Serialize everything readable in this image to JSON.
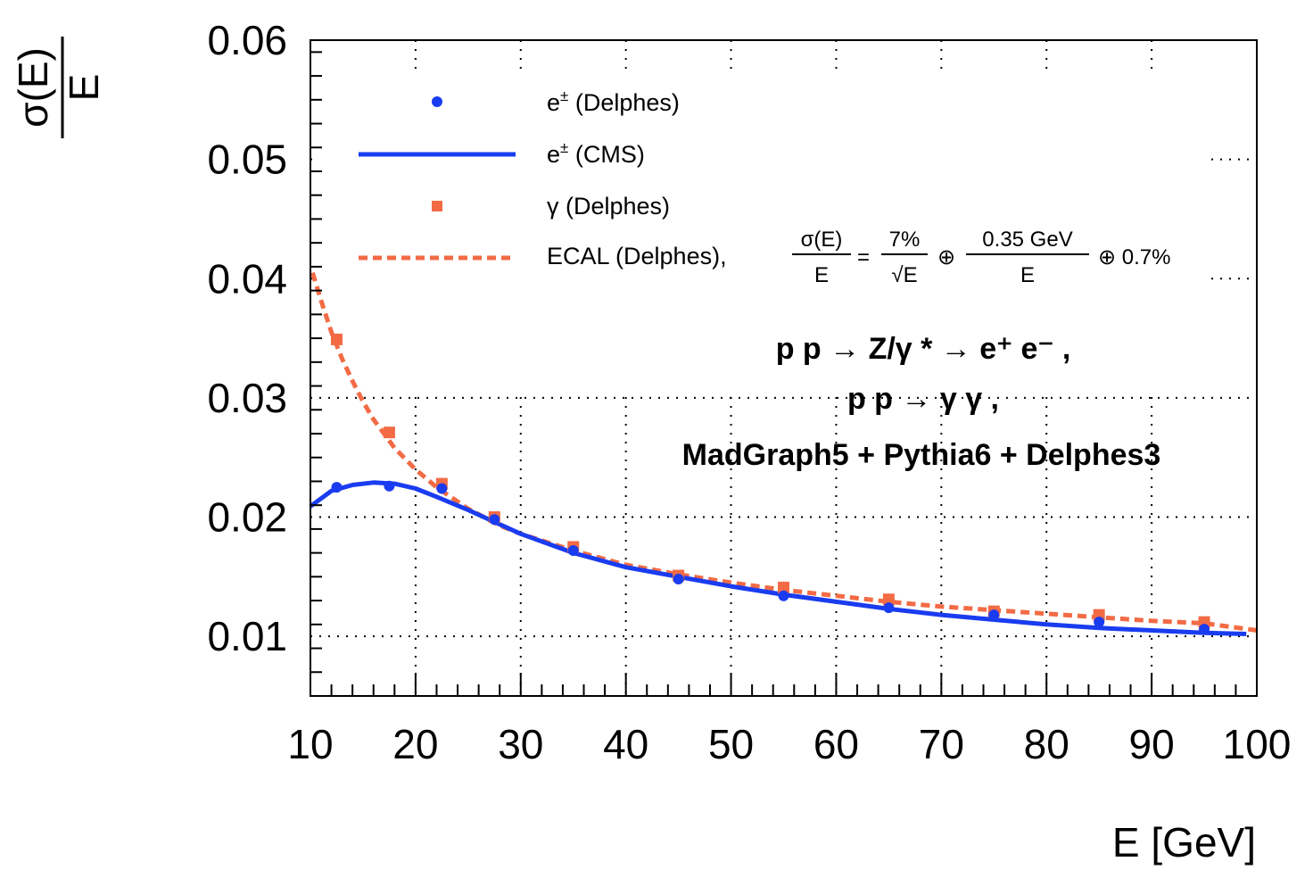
{
  "chart_data": {
    "type": "scatter",
    "xlabel": "E [GeV]",
    "ylabel": {
      "numerator": "σ(E)",
      "denominator": "E"
    },
    "xlim": [
      10,
      100
    ],
    "ylim": [
      0.005,
      0.06
    ],
    "x_ticks": [
      "10",
      "20",
      "30",
      "40",
      "50",
      "60",
      "70",
      "80",
      "90",
      "100"
    ],
    "y_ticks": [
      "0.01",
      "0.02",
      "0.03",
      "0.04",
      "0.05",
      "0.06"
    ],
    "grid": true,
    "legend_position": "top-left",
    "series": [
      {
        "name": "e± (Delphes)",
        "label_main": "e",
        "label_sup": "±",
        "label_rest": " (Delphes)",
        "kind": "points",
        "marker": "circle",
        "color": "#1a3cf0",
        "x": [
          12.5,
          17.5,
          22.5,
          27.5,
          35,
          45,
          55,
          65,
          75,
          85,
          95
        ],
        "y": [
          0.0225,
          0.0226,
          0.0224,
          0.0198,
          0.0172,
          0.0148,
          0.0134,
          0.0124,
          0.0118,
          0.0112,
          0.0106
        ]
      },
      {
        "name": "e± (CMS)",
        "label_main": "e",
        "label_sup": "±",
        "label_rest": " (CMS)",
        "kind": "line",
        "color": "#1a3cf0",
        "x": [
          10,
          12,
          14,
          16,
          18,
          20,
          22,
          25,
          28,
          30,
          35,
          40,
          45,
          50,
          55,
          60,
          65,
          70,
          75,
          80,
          85,
          90,
          95,
          99
        ],
        "y": [
          0.0209,
          0.0222,
          0.0227,
          0.0229,
          0.0228,
          0.0224,
          0.0217,
          0.0206,
          0.0194,
          0.0186,
          0.017,
          0.0158,
          0.015,
          0.0142,
          0.0135,
          0.0129,
          0.0123,
          0.0118,
          0.0114,
          0.011,
          0.0107,
          0.0105,
          0.0103,
          0.0102
        ]
      },
      {
        "name": "γ (Delphes)",
        "label_main": "γ (Delphes)",
        "label_sup": "",
        "label_rest": "",
        "kind": "points",
        "marker": "square",
        "color": "#f26b45",
        "x": [
          12.5,
          17.5,
          22.5,
          27.5,
          35,
          45,
          55,
          65,
          75,
          85,
          95
        ],
        "y": [
          0.0349,
          0.0271,
          0.0228,
          0.02,
          0.0175,
          0.0151,
          0.0141,
          0.0131,
          0.0121,
          0.0118,
          0.0112
        ]
      },
      {
        "name": "ECAL (Delphes),",
        "label_main": "ECAL (Delphes),",
        "label_sup": "",
        "label_rest": "",
        "kind": "dashed",
        "color": "#f26b45",
        "x": [
          10.2,
          11,
          12,
          13,
          14,
          15,
          16,
          18,
          20,
          22,
          25,
          28,
          30,
          35,
          40,
          45,
          50,
          55,
          60,
          65,
          70,
          75,
          80,
          85,
          90,
          95,
          100
        ],
        "y": [
          0.0405,
          0.0382,
          0.0355,
          0.0333,
          0.0314,
          0.0297,
          0.0282,
          0.0258,
          0.024,
          0.0225,
          0.0207,
          0.0193,
          0.0186,
          0.0172,
          0.016,
          0.0152,
          0.0145,
          0.0139,
          0.0134,
          0.0129,
          0.0125,
          0.0122,
          0.0119,
          0.0116,
          0.0113,
          0.0111,
          0.0105
        ]
      }
    ],
    "formula": {
      "lhs_num": "σ(E)",
      "lhs_den": "E",
      "equals": "=",
      "t1_num": "7%",
      "t1_den": "√E",
      "oplus1": "⊕",
      "t2_num": "0.35 GeV",
      "t2_den": "E",
      "oplus2_rest": "⊕ 0.7%"
    },
    "annotations": {
      "line1": "p p  → Z/γ *  → e⁺ e⁻  ,",
      "line2": "p p  →  γ  γ  ,",
      "line3": "MadGraph5 + Pythia6 + Delphes3"
    }
  }
}
